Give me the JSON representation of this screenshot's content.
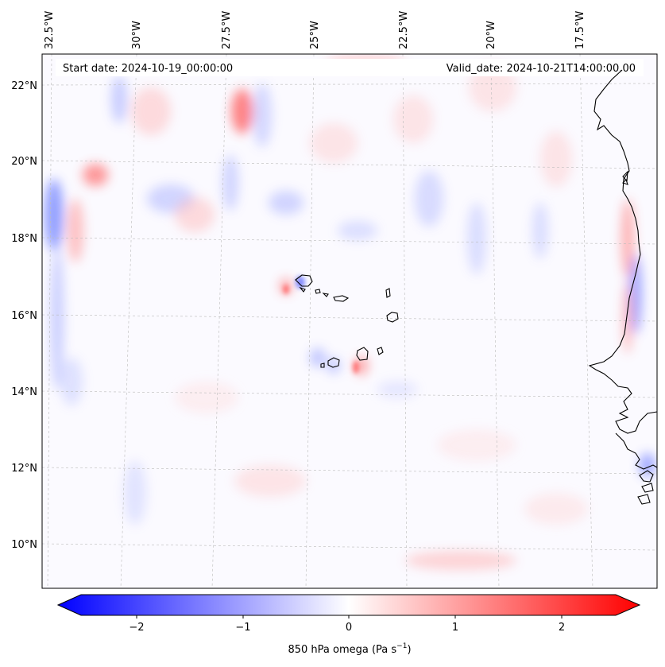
{
  "map": {
    "header": {
      "start_label": "Start date: 2024-10-19_00:00:00",
      "valid_label": "Valid_date: 2024-10-21T14:00:00.00"
    },
    "lon_labels": [
      "32.5°W",
      "30°W",
      "27.5°W",
      "25°W",
      "22.5°W",
      "20°W",
      "17.5°W"
    ],
    "lat_labels": [
      "22°N",
      "20°N",
      "18°N",
      "16°N",
      "14°N",
      "12°N",
      "10°N"
    ],
    "colorbar": {
      "ticks": [
        "−2",
        "−1",
        "0",
        "1",
        "2"
      ],
      "label_main": "850 hPa omega (Pa s",
      "label_sup": "−1",
      "label_end": ")",
      "min": -2.7,
      "max": 2.7,
      "low_color": "#0000ff",
      "mid_color": "#ffffff",
      "high_color": "#ff0000"
    },
    "colors": {
      "coastline": "#000000",
      "grid": "#bbbbbb"
    }
  }
}
